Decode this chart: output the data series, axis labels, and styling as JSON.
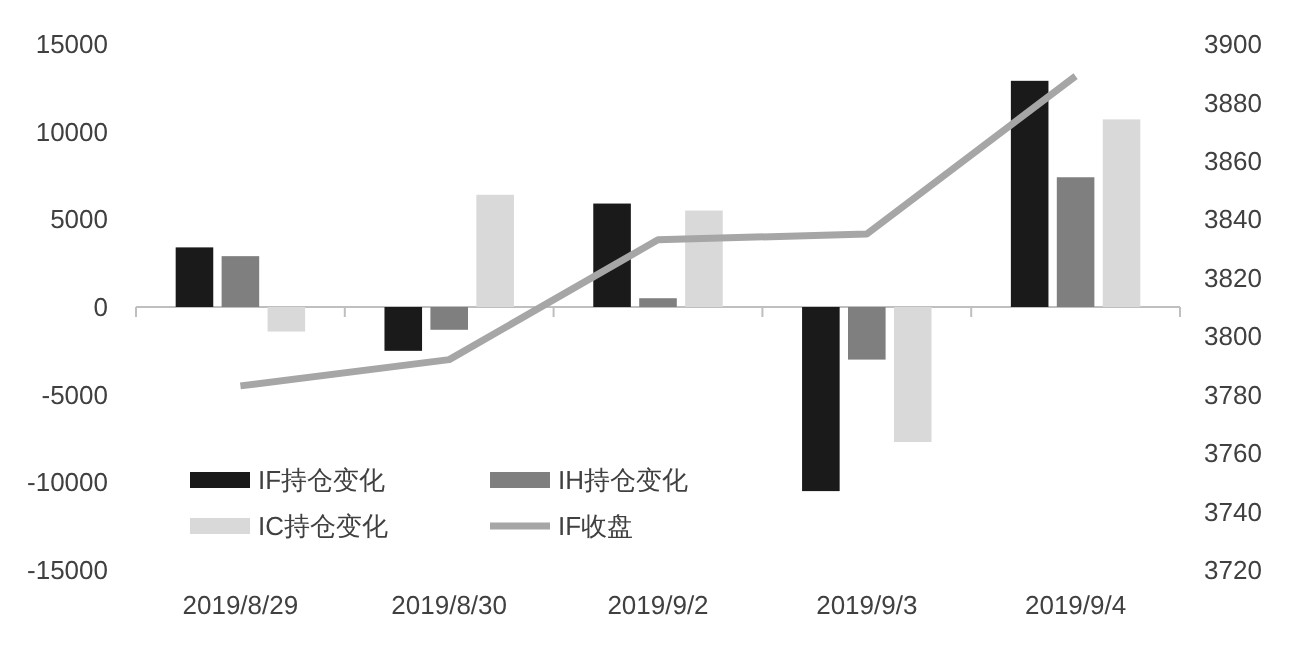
{
  "chart_data": {
    "type": "bar",
    "categories": [
      "2019/8/29",
      "2019/8/30",
      "2019/9/2",
      "2019/9/3",
      "2019/9/4"
    ],
    "series": [
      {
        "name": "IF持仓变化",
        "color": "#1a1a1a",
        "values": [
          3400,
          -2500,
          5900,
          -10500,
          12900
        ]
      },
      {
        "name": "IH持仓变化",
        "color": "#7f7f7f",
        "values": [
          2900,
          -1300,
          500,
          -3000,
          7400
        ]
      },
      {
        "name": "IC持仓变化",
        "color": "#d9d9d9",
        "values": [
          -1400,
          6400,
          5500,
          -7700,
          10700
        ]
      },
      {
        "name": "IF收盘",
        "type": "line",
        "axis": "y2",
        "color": "#a6a6a6",
        "values": [
          3783,
          3792,
          3833,
          3835,
          3889
        ]
      }
    ],
    "ylim": [
      -15000,
      15000
    ],
    "yticks": [
      -15000,
      -10000,
      -5000,
      0,
      5000,
      10000,
      15000
    ],
    "y2lim": [
      3720,
      3900
    ],
    "y2ticks": [
      3720,
      3740,
      3760,
      3780,
      3800,
      3820,
      3840,
      3860,
      3880,
      3900
    ],
    "legend": "bottom left",
    "marker": "none",
    "line_style": "solid"
  }
}
